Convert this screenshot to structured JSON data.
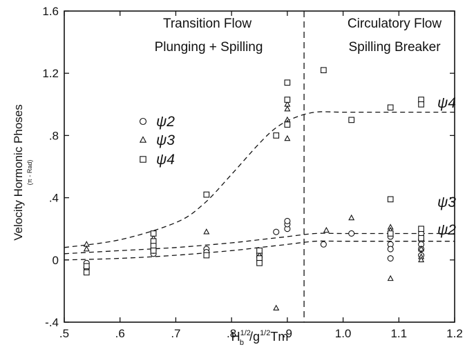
{
  "chart_data": {
    "type": "scatter",
    "xlabel": "H_b^1/2/g^1/2Tm",
    "xlabel_parts": {
      "H": "H",
      "b_sub": "b",
      "half1": "1/2",
      "slash_g": "/g",
      "half2": "1/2",
      "Tm": "Tm"
    },
    "ylabel": "Velocity Hormonic Phoses",
    "ylabel_unit": "(π - Rad)",
    "xlim": [
      0.5,
      1.2
    ],
    "ylim": [
      -0.4,
      1.6
    ],
    "xticks": [
      0.5,
      0.6,
      0.7,
      0.8,
      0.9,
      1.0,
      1.1,
      1.2
    ],
    "xtick_labels": [
      ".5",
      ".6",
      ".7",
      ".8",
      ".9",
      "1.0",
      "1.1",
      "1.2"
    ],
    "yticks": [
      -0.4,
      0,
      0.4,
      0.8,
      1.2,
      1.6
    ],
    "ytick_labels": [
      "-.4",
      "0",
      ".4",
      ".8",
      "1.2",
      "1.6"
    ],
    "grid": false,
    "legend_placement": "left",
    "divider_x": 0.93,
    "regions": [
      {
        "line1": "Transition Flow",
        "line2": "Plunging + Spilling"
      },
      {
        "line1": "Circulatory Flow",
        "line2": "Spilling Breaker"
      }
    ],
    "series": [
      {
        "name": "ψ2",
        "marker": "circle",
        "points": [
          [
            0.54,
            -0.02
          ],
          [
            0.54,
            -0.05
          ],
          [
            0.66,
            0.04
          ],
          [
            0.66,
            0.06
          ],
          [
            0.755,
            0.07
          ],
          [
            0.755,
            0.05
          ],
          [
            0.85,
            0.02
          ],
          [
            0.85,
            0.04
          ],
          [
            0.88,
            0.18
          ],
          [
            0.9,
            0.2
          ],
          [
            0.9,
            0.23
          ],
          [
            0.9,
            0.25
          ],
          [
            0.965,
            0.1
          ],
          [
            1.015,
            0.17
          ],
          [
            1.085,
            0.15
          ],
          [
            1.085,
            0.1
          ],
          [
            1.085,
            0.07
          ],
          [
            1.085,
            0.01
          ],
          [
            1.14,
            0.17
          ],
          [
            1.14,
            0.13
          ],
          [
            1.14,
            0.1
          ],
          [
            1.14,
            0.07
          ],
          [
            1.14,
            0.03
          ]
        ]
      },
      {
        "name": "ψ3",
        "marker": "triangle",
        "points": [
          [
            0.54,
            0.1
          ],
          [
            0.54,
            0.07
          ],
          [
            0.66,
            0.14
          ],
          [
            0.66,
            0.11
          ],
          [
            0.755,
            0.18
          ],
          [
            0.85,
            0.03
          ],
          [
            0.88,
            -0.31
          ],
          [
            0.9,
            1.0
          ],
          [
            0.9,
            0.97
          ],
          [
            0.9,
            0.9
          ],
          [
            0.9,
            0.88
          ],
          [
            0.9,
            0.78
          ],
          [
            0.97,
            0.19
          ],
          [
            1.015,
            0.27
          ],
          [
            1.085,
            0.21
          ],
          [
            1.085,
            0.19
          ],
          [
            1.085,
            -0.12
          ],
          [
            1.14,
            0.07
          ],
          [
            1.14,
            0.02
          ],
          [
            1.14,
            0.0
          ]
        ]
      },
      {
        "name": "ψ4",
        "marker": "square",
        "points": [
          [
            0.54,
            -0.04
          ],
          [
            0.54,
            -0.08
          ],
          [
            0.66,
            0.17
          ],
          [
            0.66,
            0.12
          ],
          [
            0.66,
            0.09
          ],
          [
            0.66,
            0.06
          ],
          [
            0.755,
            0.42
          ],
          [
            0.755,
            0.03
          ],
          [
            0.85,
            0.06
          ],
          [
            0.85,
            0.01
          ],
          [
            0.85,
            -0.02
          ],
          [
            0.88,
            0.8
          ],
          [
            0.9,
            1.14
          ],
          [
            0.9,
            1.03
          ],
          [
            0.9,
            0.87
          ],
          [
            0.965,
            1.22
          ],
          [
            1.015,
            0.9
          ],
          [
            1.085,
            0.98
          ],
          [
            1.085,
            0.39
          ],
          [
            1.085,
            0.17
          ],
          [
            1.14,
            1.03
          ],
          [
            1.14,
            1.0
          ],
          [
            1.14,
            0.2
          ],
          [
            1.14,
            0.14
          ]
        ]
      }
    ],
    "curves": [
      {
        "label": "ψ4",
        "points": [
          [
            0.5,
            0.08
          ],
          [
            0.6,
            0.13
          ],
          [
            0.7,
            0.24
          ],
          [
            0.75,
            0.36
          ],
          [
            0.8,
            0.55
          ],
          [
            0.85,
            0.75
          ],
          [
            0.88,
            0.85
          ],
          [
            0.91,
            0.91
          ],
          [
            0.95,
            0.95
          ],
          [
            1.0,
            0.95
          ],
          [
            1.1,
            0.95
          ],
          [
            1.2,
            0.95
          ]
        ]
      },
      {
        "label": "ψ3",
        "points": [
          [
            0.5,
            0.04
          ],
          [
            0.6,
            0.06
          ],
          [
            0.7,
            0.08
          ],
          [
            0.8,
            0.11
          ],
          [
            0.85,
            0.13
          ],
          [
            0.9,
            0.15
          ],
          [
            0.95,
            0.17
          ],
          [
            1.0,
            0.17
          ],
          [
            1.1,
            0.17
          ],
          [
            1.2,
            0.17
          ]
        ]
      },
      {
        "label": "ψ2",
        "points": [
          [
            0.5,
            0.0
          ],
          [
            0.6,
            0.01
          ],
          [
            0.7,
            0.03
          ],
          [
            0.8,
            0.06
          ],
          [
            0.85,
            0.08
          ],
          [
            0.9,
            0.1
          ],
          [
            0.95,
            0.12
          ],
          [
            1.0,
            0.12
          ],
          [
            1.1,
            0.12
          ],
          [
            1.2,
            0.12
          ]
        ]
      }
    ]
  }
}
